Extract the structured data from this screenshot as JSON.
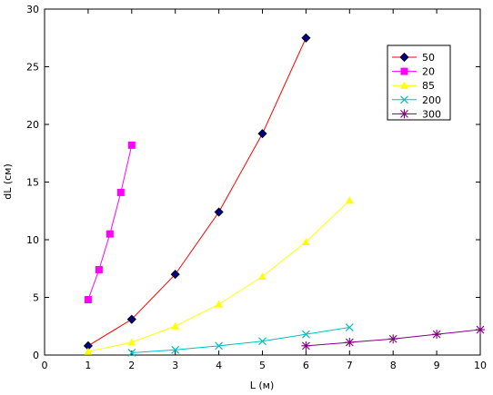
{
  "chart_data": {
    "type": "line",
    "title": "",
    "xlabel": "L (м)",
    "ylabel": "dL (см)",
    "xlim": [
      0,
      10
    ],
    "ylim": [
      0,
      30
    ],
    "xticks": [
      0,
      1,
      2,
      3,
      4,
      5,
      6,
      7,
      8,
      9,
      10
    ],
    "yticks": [
      0,
      5,
      10,
      15,
      20,
      25,
      30
    ],
    "grid": false,
    "legend_position": "top-right",
    "series": [
      {
        "name": "50",
        "color": "#ff0000",
        "marker": "diamond",
        "marker_color": "#000080",
        "x": [
          1,
          2,
          3,
          4,
          5,
          6
        ],
        "y": [
          0.8,
          3.1,
          7.0,
          12.4,
          19.2,
          27.5
        ]
      },
      {
        "name": "20",
        "color": "#ff00ff",
        "marker": "square",
        "marker_color": "#ff00ff",
        "x": [
          1,
          1.25,
          1.5,
          1.75,
          2
        ],
        "y": [
          4.8,
          7.4,
          10.5,
          14.1,
          18.2
        ]
      },
      {
        "name": "85",
        "color": "#ffff00",
        "marker": "triangle",
        "marker_color": "#ffff00",
        "x": [
          1,
          2,
          3,
          4,
          5,
          6,
          7
        ],
        "y": [
          0.3,
          1.1,
          2.5,
          4.4,
          6.8,
          9.8,
          13.4
        ]
      },
      {
        "name": "200",
        "color": "#00c0c0",
        "marker": "x",
        "marker_color": "#00c0c0",
        "x": [
          2,
          3,
          4,
          5,
          6,
          7
        ],
        "y": [
          0.2,
          0.45,
          0.8,
          1.2,
          1.8,
          2.4
        ]
      },
      {
        "name": "300",
        "color": "#800080",
        "marker": "star",
        "marker_color": "#800080",
        "x": [
          6,
          7,
          8,
          9,
          10
        ],
        "y": [
          0.8,
          1.1,
          1.4,
          1.8,
          2.2
        ]
      }
    ]
  }
}
